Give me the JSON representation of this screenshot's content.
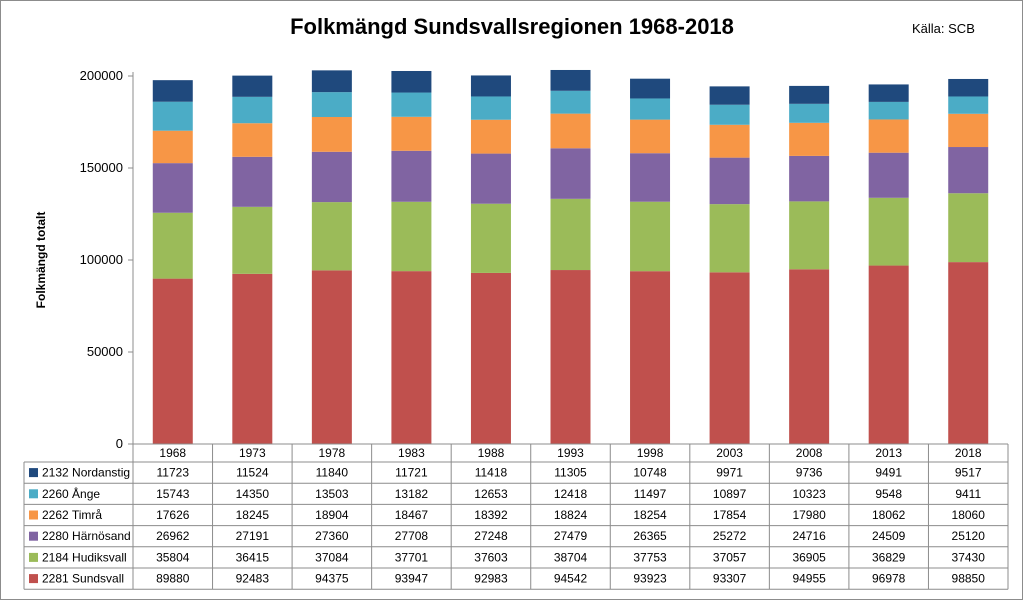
{
  "chart_data": {
    "type": "bar",
    "stacked": true,
    "title": "Folkmängd Sundsvallsregionen 1968-2018",
    "source_note": "Källa: SCB",
    "ylabel": "Folkmängd totalt",
    "xlabel": "",
    "ylim": [
      0,
      200000
    ],
    "yticks": [
      0,
      50000,
      100000,
      150000,
      200000
    ],
    "grid": false,
    "legend": "data-table-left",
    "categories": [
      "1968",
      "1973",
      "1978",
      "1983",
      "1988",
      "1993",
      "1998",
      "2003",
      "2008",
      "2013",
      "2018"
    ],
    "series": [
      {
        "name": "2281 Sundsvall",
        "color": "#c0504d",
        "values": [
          89880,
          92483,
          94375,
          93947,
          92983,
          94542,
          93923,
          93307,
          94955,
          96978,
          98850
        ]
      },
      {
        "name": "2184 Hudiksvall",
        "color": "#9bbb59",
        "values": [
          35804,
          36415,
          37084,
          37701,
          37603,
          38704,
          37753,
          37057,
          36905,
          36829,
          37430
        ]
      },
      {
        "name": "2280 Härnösand",
        "color": "#8064a2",
        "values": [
          26962,
          27191,
          27360,
          27708,
          27248,
          27479,
          26365,
          25272,
          24716,
          24509,
          25120
        ]
      },
      {
        "name": "2262 Timrå",
        "color": "#f79646",
        "values": [
          17626,
          18245,
          18904,
          18467,
          18392,
          18824,
          18254,
          17854,
          17980,
          18062,
          18060
        ]
      },
      {
        "name": "2260 Ånge",
        "color": "#4bacc6",
        "values": [
          15743,
          14350,
          13503,
          13182,
          12653,
          12418,
          11497,
          10897,
          10323,
          9548,
          9411
        ]
      },
      {
        "name": "2132 Nordanstig",
        "color": "#1f497d",
        "values": [
          11723,
          11524,
          11840,
          11721,
          11418,
          11305,
          10748,
          9971,
          9736,
          9491,
          9517
        ]
      }
    ]
  }
}
